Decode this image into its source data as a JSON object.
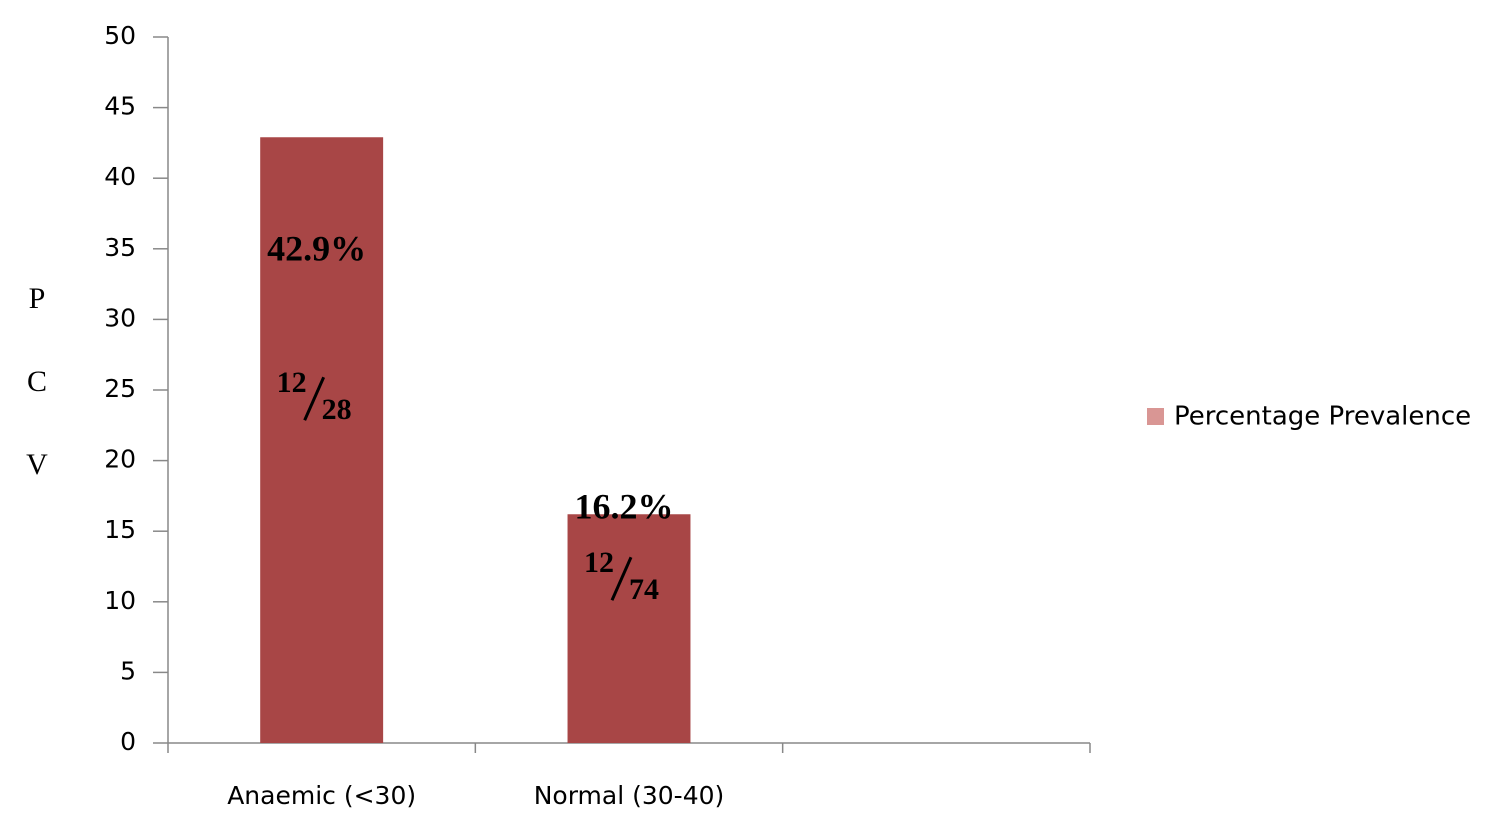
{
  "chart_data": {
    "type": "bar",
    "y_label": "PCV",
    "categories": [
      "Anaemic (<30)",
      "Normal (30-40)",
      null
    ],
    "series": [
      {
        "name": "Percentage Prevalence",
        "color": "#a84646",
        "legend_color": "#d99694",
        "values": [
          42.9,
          16.2,
          null
        ],
        "value_labels": [
          "42.9%",
          "16.2%",
          null
        ]
      }
    ],
    "fraction_labels": [
      {
        "numerator": 12,
        "denominator": 28
      },
      {
        "numerator": 12,
        "denominator": 74
      },
      null
    ],
    "ylim": [
      0,
      50
    ],
    "yticks": [
      0,
      5,
      10,
      15,
      20,
      25,
      30,
      35,
      40,
      45,
      50
    ],
    "grid": false,
    "legend": "right"
  }
}
